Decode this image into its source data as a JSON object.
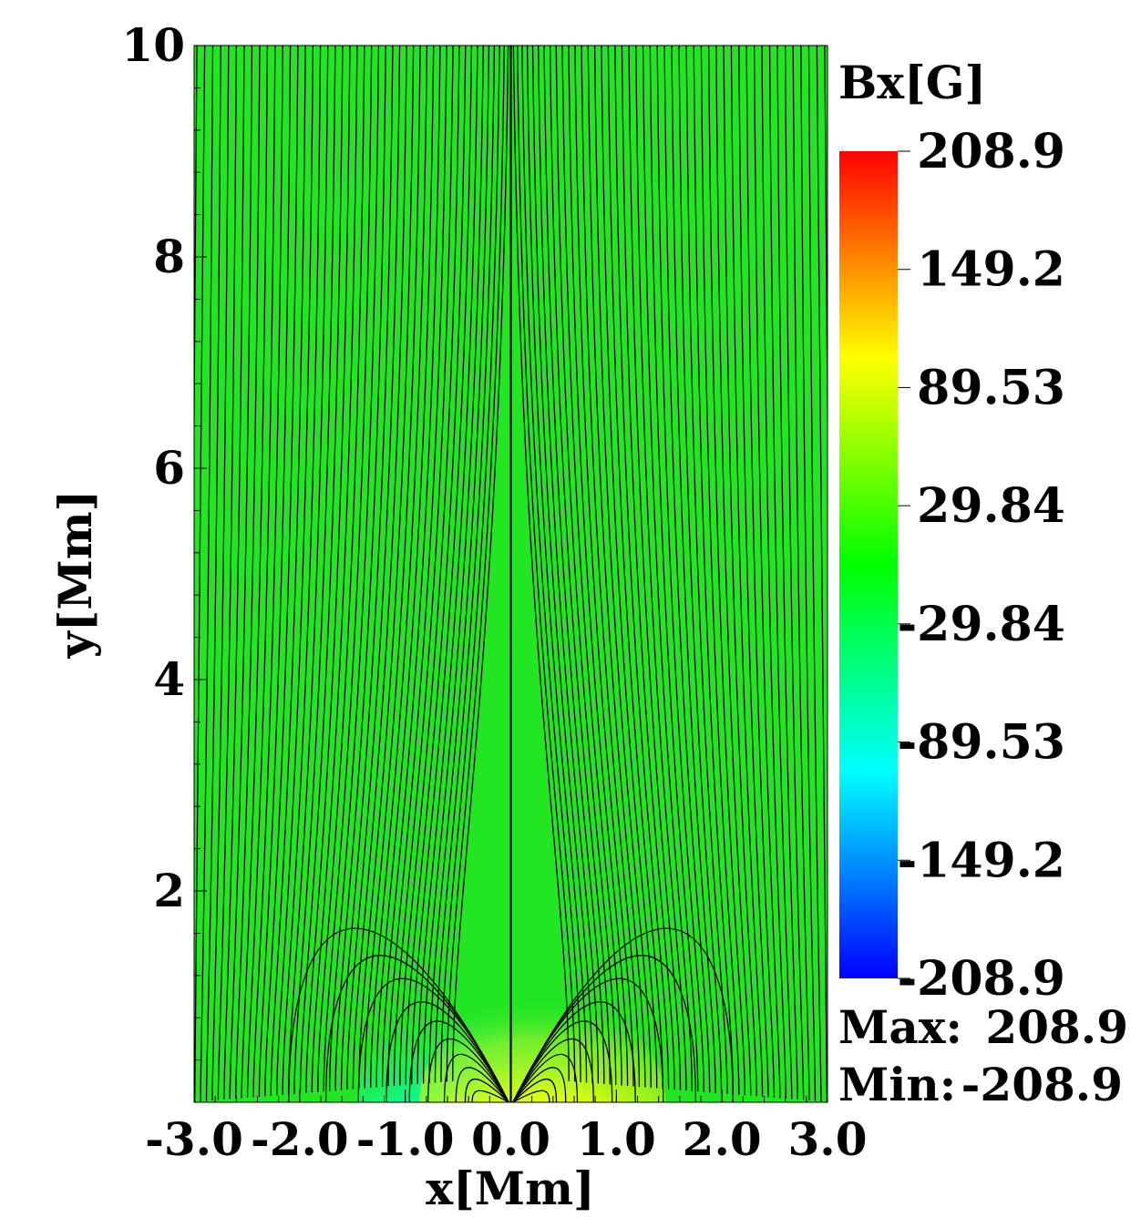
{
  "chart_data": {
    "type": "heatmap",
    "title": "",
    "xlabel": "x[Mm]",
    "ylabel": "y[Mm]",
    "xlim": [
      -3.0,
      3.0
    ],
    "ylim": [
      0,
      10
    ],
    "x_ticks": [
      "-3.0",
      "-2.0",
      "-1.0",
      "0.0",
      "1.0",
      "2.0",
      "3.0"
    ],
    "y_ticks": [
      "2",
      "4",
      "6",
      "8",
      "10"
    ],
    "x_tick_values": [
      -3,
      -2,
      -1,
      0,
      1,
      2,
      3
    ],
    "y_tick_values": [
      2,
      4,
      6,
      8,
      10
    ],
    "colorbar": {
      "title": "Bx[G]",
      "ticks": [
        "208.9",
        "149.2",
        "89.53",
        "29.84",
        "-29.84",
        "-89.53",
        "-149.2",
        "-208.9"
      ],
      "tick_values": [
        208.9,
        149.2,
        89.53,
        29.84,
        -29.84,
        -89.53,
        -149.2,
        -208.9
      ],
      "range": [
        -208.9,
        208.9
      ],
      "colormap": [
        "#0000ff",
        "#00ffff",
        "#00ff00",
        "#ffff00",
        "#ff0000"
      ]
    },
    "field_color": "#22e622",
    "sources": [
      {
        "x": -0.3,
        "y": 0.0,
        "sign": -1,
        "peak": -208.9
      },
      {
        "x": 0.3,
        "y": 0.0,
        "sign": 1,
        "peak": 208.9
      }
    ],
    "streamlines": "black magnetic field lines: closed arcs over the bipole near y < 2 Mm, open fan lines spreading upward, separatrix along x = 0",
    "stats": {
      "max_label": "Max:",
      "max_value": "208.9",
      "min_label": "Min:",
      "min_value": "-208.9"
    }
  }
}
